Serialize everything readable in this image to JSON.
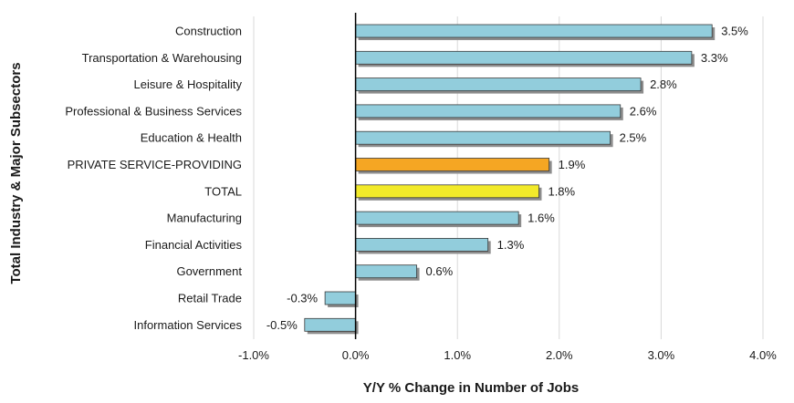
{
  "chart_data": {
    "type": "bar",
    "orientation": "horizontal",
    "categories": [
      "Construction",
      "Transportation & Warehousing",
      "Leisure & Hospitality",
      "Professional & Business Services",
      "Education & Health",
      "PRIVATE SERVICE-PROVIDING",
      "TOTAL",
      "Manufacturing",
      "Financial Activities",
      "Government",
      "Retail Trade",
      "Information Services"
    ],
    "values": [
      3.5,
      3.3,
      2.8,
      2.6,
      2.5,
      1.9,
      1.8,
      1.6,
      1.3,
      0.6,
      -0.3,
      -0.5
    ],
    "value_labels": [
      "3.5%",
      "3.3%",
      "2.8%",
      "2.6%",
      "2.5%",
      "1.9%",
      "1.8%",
      "1.6%",
      "1.3%",
      "0.6%",
      "-0.3%",
      "-0.5%"
    ],
    "bar_colors": [
      "#92cddc",
      "#92cddc",
      "#92cddc",
      "#92cddc",
      "#92cddc",
      "#f5a623",
      "#f2ea2a",
      "#92cddc",
      "#92cddc",
      "#92cddc",
      "#92cddc",
      "#92cddc"
    ],
    "xlim": [
      -1.0,
      4.0
    ],
    "xticks": [
      -1.0,
      0.0,
      1.0,
      2.0,
      3.0,
      4.0
    ],
    "xtick_labels": [
      "-1.0%",
      "0.0%",
      "1.0%",
      "2.0%",
      "3.0%",
      "4.0%"
    ],
    "xlabel": "Y/Y % Change in Number of Jobs",
    "ylabel": "Total Industry & Major Subsectors",
    "title": "",
    "grid": "vertical",
    "legend": "none"
  }
}
